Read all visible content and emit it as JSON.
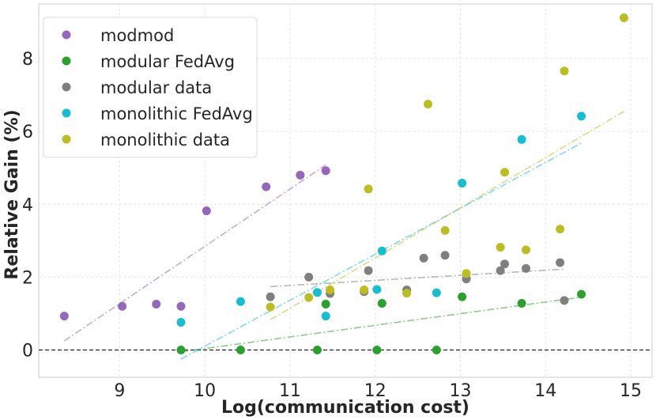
{
  "chart_data": {
    "type": "scatter",
    "title": "",
    "xlabel": "Log(communication cost)",
    "ylabel": "Relative Gain (%)",
    "xlim": [
      8.05,
      15.25
    ],
    "ylim": [
      -0.75,
      9.5
    ],
    "xticks": [
      9,
      10,
      11,
      12,
      13,
      14,
      15
    ],
    "yticks": [
      0,
      2,
      4,
      6,
      8
    ],
    "grid": true,
    "legend_position": "top-left",
    "baseline": 0,
    "series": [
      {
        "name": "modmod",
        "color": "#9467bd",
        "points": [
          [
            8.35,
            0.93
          ],
          [
            9.03,
            1.2
          ],
          [
            9.43,
            1.26
          ],
          [
            9.72,
            1.2
          ],
          [
            10.02,
            3.82
          ],
          [
            10.72,
            4.48
          ],
          [
            11.12,
            4.8
          ],
          [
            11.42,
            4.92
          ]
        ],
        "trend": [
          [
            8.35,
            0.25
          ],
          [
            11.42,
            5.08
          ]
        ]
      },
      {
        "name": "modular FedAvg",
        "color": "#2ca02c",
        "points": [
          [
            9.72,
            0.0
          ],
          [
            10.42,
            0.0
          ],
          [
            11.32,
            0.0
          ],
          [
            11.42,
            1.26
          ],
          [
            12.02,
            0.0
          ],
          [
            12.08,
            1.28
          ],
          [
            12.72,
            0.0
          ],
          [
            13.02,
            1.46
          ],
          [
            13.72,
            1.28
          ],
          [
            14.42,
            1.53
          ]
        ],
        "trend": [
          [
            9.72,
            -0.05
          ],
          [
            14.42,
            1.45
          ]
        ]
      },
      {
        "name": "modular data",
        "color": "#7f7f7f",
        "points": [
          [
            10.77,
            1.46
          ],
          [
            11.22,
            2.0
          ],
          [
            11.47,
            1.55
          ],
          [
            11.87,
            1.6
          ],
          [
            11.92,
            2.18
          ],
          [
            12.37,
            1.65
          ],
          [
            12.57,
            2.52
          ],
          [
            12.82,
            2.6
          ],
          [
            13.07,
            1.95
          ],
          [
            13.47,
            2.18
          ],
          [
            13.52,
            2.36
          ],
          [
            13.77,
            2.24
          ],
          [
            14.17,
            2.4
          ],
          [
            14.22,
            1.36
          ]
        ],
        "trend": [
          [
            10.77,
            1.74
          ],
          [
            14.22,
            2.22
          ]
        ]
      },
      {
        "name": "monolithic FedAvg",
        "color": "#17becf",
        "points": [
          [
            9.72,
            0.76
          ],
          [
            10.42,
            1.33
          ],
          [
            11.32,
            1.58
          ],
          [
            11.42,
            0.93
          ],
          [
            12.02,
            1.66
          ],
          [
            12.08,
            2.72
          ],
          [
            12.72,
            1.57
          ],
          [
            13.02,
            4.58
          ],
          [
            13.72,
            5.78
          ],
          [
            14.42,
            6.42
          ]
        ],
        "trend": [
          [
            9.72,
            -0.25
          ],
          [
            14.42,
            5.68
          ]
        ]
      },
      {
        "name": "monolithic data",
        "color": "#bcbd22",
        "points": [
          [
            10.77,
            1.18
          ],
          [
            11.22,
            1.44
          ],
          [
            11.47,
            1.65
          ],
          [
            11.87,
            1.65
          ],
          [
            11.92,
            4.42
          ],
          [
            12.37,
            1.56
          ],
          [
            12.62,
            6.75
          ],
          [
            12.82,
            3.28
          ],
          [
            13.07,
            2.1
          ],
          [
            13.47,
            2.82
          ],
          [
            13.52,
            4.88
          ],
          [
            13.77,
            2.75
          ],
          [
            14.17,
            3.32
          ],
          [
            14.22,
            7.66
          ],
          [
            14.92,
            9.12
          ]
        ],
        "trend": [
          [
            10.77,
            0.83
          ],
          [
            14.92,
            6.55
          ]
        ]
      }
    ]
  }
}
